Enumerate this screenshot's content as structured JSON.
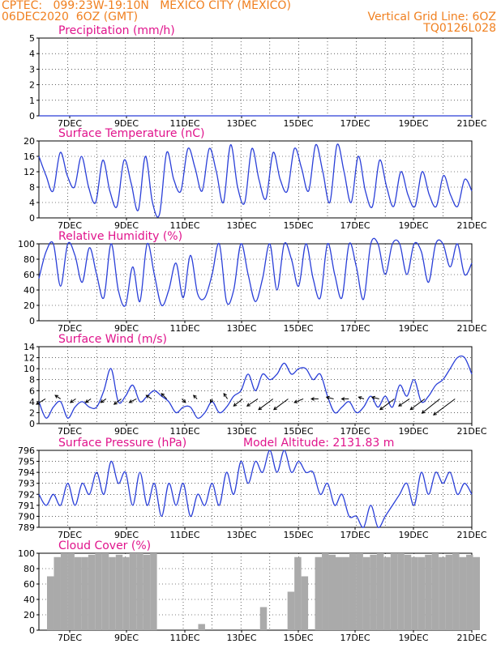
{
  "header": {
    "line1": "CPTEC:   099:23W-19:10N   MEXICO CITY (MEXICO)",
    "line2": "06DEC2020  6OZ (GMT)",
    "grid_note": "Vertical Grid Line: 6OZ",
    "code": "TQ0126L028"
  },
  "x_tick_labels": [
    "7DEC",
    "9DEC",
    "11DEC",
    "13DEC",
    "15DEC",
    "17DEC",
    "19DEC",
    "21DEC"
  ],
  "colors": {
    "title": "#e0148c",
    "header": "#f08020",
    "line": "#2a3fd8",
    "arrow": "#000000",
    "bar": "#aaaaaa"
  },
  "chart_data": [
    {
      "type": "line",
      "title": "Precipitation (mm/h)",
      "ylim": [
        0,
        5
      ],
      "yticks": [
        0,
        1,
        2,
        3,
        4,
        5
      ],
      "grid": true,
      "series": [
        {
          "values": [
            0,
            0,
            0,
            0,
            0,
            0,
            0,
            0,
            0,
            0,
            0,
            0,
            0,
            0,
            0,
            0,
            0,
            0,
            0,
            0,
            0,
            0,
            0,
            0,
            0,
            0,
            0,
            0,
            0,
            0,
            0,
            0,
            0,
            0,
            0,
            0,
            0,
            0,
            0,
            0,
            0,
            0,
            0,
            0,
            0,
            0,
            0,
            0,
            0,
            0,
            0,
            0,
            0,
            0,
            0,
            0,
            0,
            0,
            0,
            0,
            0
          ]
        }
      ]
    },
    {
      "type": "line",
      "title": "Surface Temperature (nC)",
      "ylim": [
        0,
        20
      ],
      "yticks": [
        0,
        4,
        8,
        12,
        16,
        20
      ],
      "grid": true,
      "series": [
        {
          "values": [
            16,
            11,
            7,
            17,
            11,
            8,
            16,
            8,
            4,
            15,
            7,
            3,
            15,
            9,
            2,
            16,
            4,
            1,
            17,
            10,
            7,
            18,
            13,
            7,
            18,
            12,
            4,
            19,
            8,
            4,
            18,
            10,
            5,
            17,
            10,
            7,
            18,
            13,
            7,
            19,
            12,
            4,
            19,
            12,
            4,
            16,
            7,
            3,
            15,
            8,
            3,
            12,
            6,
            3,
            12,
            6,
            3,
            11,
            6,
            3,
            10,
            7
          ]
        }
      ],
      "note": "values sampled every 6h from 6DEC 06Z"
    },
    {
      "type": "line",
      "title": "Relative Humidity (%)",
      "ylim": [
        0,
        100
      ],
      "yticks": [
        0,
        20,
        40,
        60,
        80,
        100
      ],
      "grid": true,
      "series": [
        {
          "values": [
            55,
            90,
            100,
            45,
            100,
            85,
            50,
            95,
            60,
            30,
            100,
            40,
            20,
            70,
            25,
            100,
            60,
            20,
            40,
            75,
            30,
            85,
            35,
            30,
            60,
            100,
            25,
            40,
            100,
            60,
            25,
            55,
            100,
            40,
            100,
            80,
            45,
            100,
            55,
            30,
            100,
            60,
            30,
            100,
            70,
            28,
            100,
            100,
            60,
            100,
            100,
            60,
            100,
            90,
            50,
            100,
            100,
            70,
            100,
            60,
            75
          ]
        }
      ]
    },
    {
      "type": "line",
      "title": "Surface Wind (m/s)",
      "ylim": [
        0,
        14
      ],
      "yticks": [
        0,
        2,
        4,
        6,
        8,
        10,
        12,
        14
      ],
      "grid": true,
      "series": [
        {
          "values": [
            4,
            1,
            3,
            4,
            1,
            3,
            4,
            3,
            3,
            6,
            10,
            4,
            5,
            7,
            4,
            5,
            6,
            5,
            4,
            2,
            3,
            3,
            1,
            2,
            4,
            2,
            3,
            5,
            6,
            9,
            6,
            9,
            8,
            9,
            11,
            9,
            10,
            10,
            8,
            9,
            5,
            2,
            3,
            4,
            2,
            3,
            5,
            3,
            5,
            3,
            7,
            5,
            8,
            4,
            5,
            7,
            8,
            10,
            12,
            12,
            9
          ]
        }
      ],
      "wind_arrows": [
        [
          -5,
          -3
        ],
        [
          -3,
          2
        ],
        [
          -3,
          -2
        ],
        [
          -3,
          -2
        ],
        [
          -3,
          -2
        ],
        [
          -4,
          -3
        ],
        [
          -4,
          -2
        ],
        [
          -3,
          2
        ],
        [
          -3,
          3
        ],
        [
          2,
          -2
        ],
        [
          -2,
          2
        ],
        [
          -1,
          -2
        ],
        [
          -2,
          3
        ],
        [
          -5,
          -4
        ],
        [
          -6,
          -4
        ],
        [
          -8,
          -6
        ],
        [
          -8,
          -6
        ],
        [
          -5,
          -2
        ],
        [
          -4,
          0
        ],
        [
          -4,
          1
        ],
        [
          -4,
          0
        ],
        [
          -3,
          1
        ],
        [
          -4,
          1
        ],
        [
          -8,
          -6
        ],
        [
          -6,
          -4
        ],
        [
          -8,
          -6
        ],
        [
          -10,
          -8
        ],
        [
          -12,
          -9
        ]
      ]
    },
    {
      "type": "line",
      "title": "Surface Pressure (hPa)",
      "annotation": "Model Altitude: 2131.83 m",
      "ylim": [
        789,
        796
      ],
      "yticks": [
        789,
        790,
        791,
        792,
        793,
        794,
        795,
        796
      ],
      "grid": true,
      "series": [
        {
          "values": [
            792,
            791,
            792,
            791,
            793,
            791,
            793,
            792,
            794,
            792,
            795,
            793,
            794,
            791,
            794,
            791,
            793,
            790,
            793,
            791,
            793,
            790,
            792,
            791,
            793,
            791,
            794,
            792,
            795,
            793,
            795,
            794,
            796,
            794,
            796,
            794,
            795,
            794,
            794,
            792,
            793,
            791,
            792,
            790,
            790,
            789,
            791,
            789,
            790,
            791,
            792,
            793,
            791,
            794,
            792,
            794,
            793,
            794,
            792,
            793,
            792
          ]
        }
      ]
    },
    {
      "type": "bar",
      "title": "Cloud Cover (%)",
      "ylim": [
        0,
        100
      ],
      "yticks": [
        0,
        20,
        40,
        60,
        80,
        100
      ],
      "grid": true,
      "series": [
        {
          "values": [
            70,
            95,
            100,
            100,
            95,
            95,
            98,
            100,
            100,
            95,
            98,
            95,
            100,
            100,
            98,
            100,
            0,
            0,
            0,
            0,
            0,
            0,
            8,
            0,
            0,
            0,
            0,
            0,
            0,
            0,
            0,
            30,
            0,
            0,
            0,
            50,
            95,
            70,
            0,
            95,
            100,
            98,
            95,
            95,
            100,
            100,
            95,
            98,
            100,
            95,
            100,
            100,
            98,
            95,
            95,
            98,
            100,
            95,
            98,
            100,
            95,
            98,
            95
          ]
        }
      ]
    }
  ]
}
